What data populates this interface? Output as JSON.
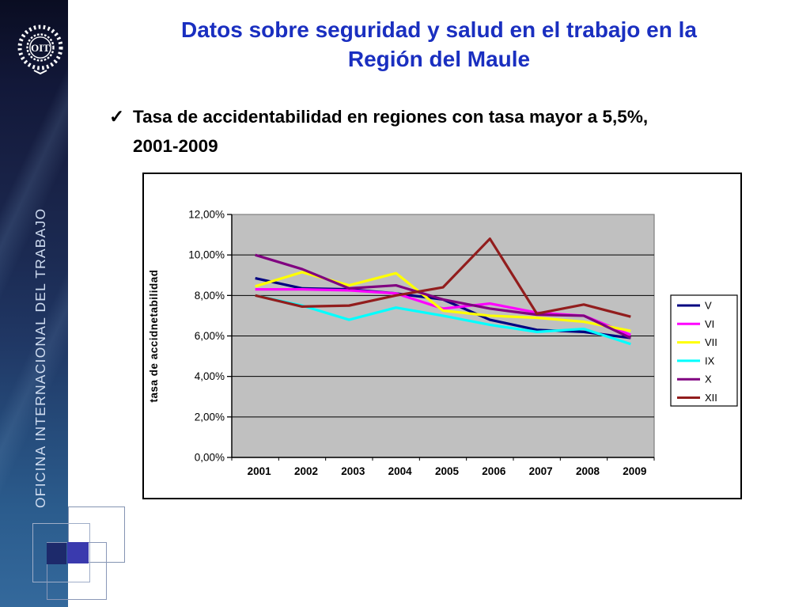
{
  "slide": {
    "title_line1": "Datos sobre seguridad y salud en el trabajo en la",
    "title_line2": "Región del Maule",
    "title_color": "#1a2fc0",
    "bullet": {
      "marker": "✓",
      "text_line1": "Tasa de accidentabilidad en regiones con tasa mayor a 5,5%,",
      "text_line2": "2001-2009"
    }
  },
  "sidebar": {
    "vertical_text": "OFICINA INTERNACIONAL DEL TRABAJO",
    "logo_text": "OIT"
  },
  "chart_data": {
    "type": "line",
    "title": "",
    "ylabel": "tasa de accidnetabilidad",
    "x_categories": [
      "2001",
      "2002",
      "2003",
      "2004",
      "2005",
      "2006",
      "2007",
      "2008",
      "2009"
    ],
    "y_ticks": [
      "0,00%",
      "2,00%",
      "4,00%",
      "6,00%",
      "8,00%",
      "10,00%",
      "12,00%"
    ],
    "ylim": [
      0,
      12
    ],
    "y_step": 2,
    "grid": true,
    "plot_bg": "#c0c0c0",
    "plot_border": "#7f7f7f",
    "legend_position": "right",
    "series": [
      {
        "name": "V",
        "color": "#000080",
        "values": [
          8.85,
          8.35,
          8.3,
          8.1,
          7.8,
          6.8,
          6.3,
          6.2,
          5.9
        ]
      },
      {
        "name": "VI",
        "color": "#ff00ff",
        "values": [
          8.3,
          8.3,
          8.25,
          8.1,
          7.35,
          7.6,
          7.15,
          7.0,
          6.05
        ]
      },
      {
        "name": "VII",
        "color": "#ffff00",
        "values": [
          8.45,
          9.15,
          8.5,
          9.1,
          7.25,
          7.0,
          6.9,
          6.7,
          6.25
        ]
      },
      {
        "name": "IX",
        "color": "#00ffff",
        "values": [
          8.0,
          7.5,
          6.8,
          7.4,
          7.0,
          6.55,
          6.2,
          6.35,
          5.6
        ]
      },
      {
        "name": "X",
        "color": "#800080",
        "values": [
          10.0,
          9.3,
          8.35,
          8.5,
          7.8,
          7.35,
          7.05,
          7.0,
          5.9
        ]
      },
      {
        "name": "XII",
        "color": "#921d1d",
        "values": [
          8.0,
          7.45,
          7.5,
          8.0,
          8.4,
          10.8,
          7.1,
          7.55,
          6.95
        ]
      }
    ]
  }
}
